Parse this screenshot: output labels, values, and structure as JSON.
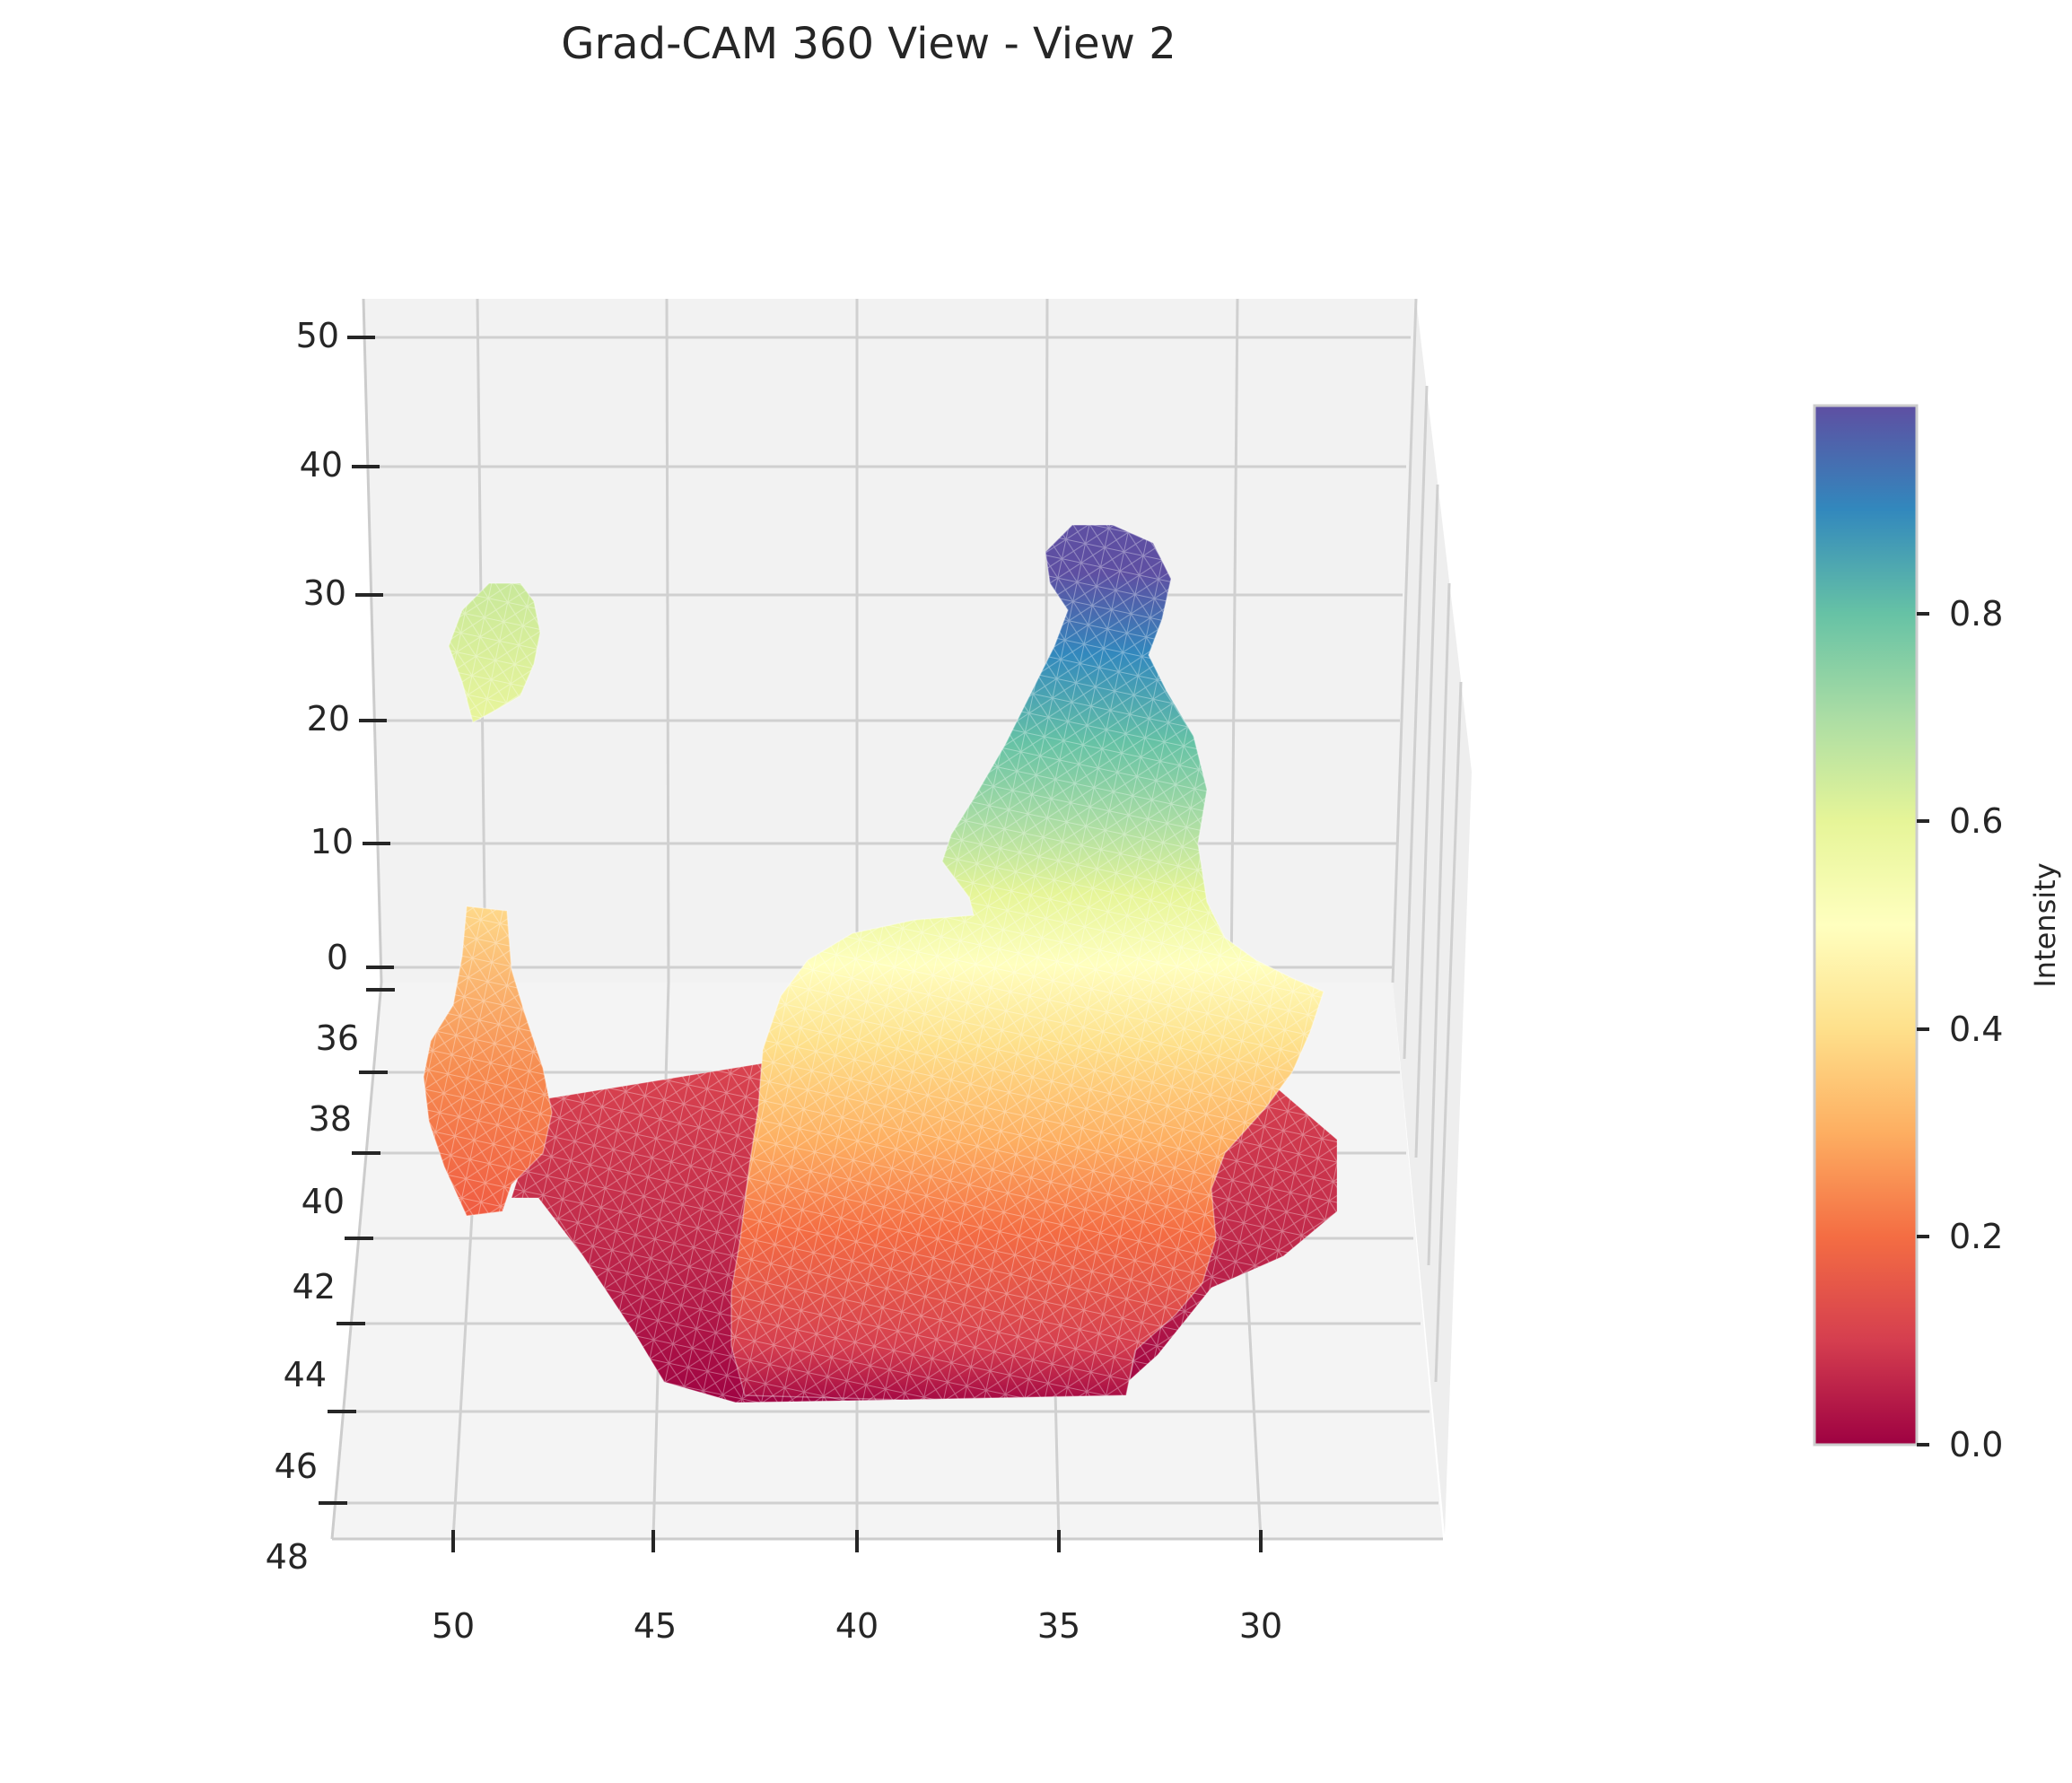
{
  "chart_data": {
    "type": "surface3d",
    "title": "Grad-CAM 360 View - View 2",
    "xlabel": "",
    "ylabel": "",
    "zlabel": "",
    "x_ticks": [
      "50",
      "45",
      "40",
      "35",
      "30"
    ],
    "y_ticks": [
      "36",
      "38",
      "40",
      "42",
      "44",
      "46",
      "48"
    ],
    "z_ticks": [
      "50",
      "40",
      "30",
      "20",
      "10",
      "0"
    ],
    "grid": true,
    "colormap": "Spectral",
    "colorbar": {
      "label": "Intensity",
      "ticks": [
        "0.0",
        "0.2",
        "0.4",
        "0.6",
        "0.8"
      ],
      "range": [
        0.0,
        0.98
      ],
      "colors": [
        "#9e0142",
        "#d53e4f",
        "#f46d43",
        "#fdae61",
        "#fee08b",
        "#ffffbf",
        "#e6f598",
        "#abdda4",
        "#66c2a5",
        "#3288bd",
        "#5e4fa2"
      ]
    },
    "regions": [
      {
        "name": "main-blob",
        "x_range": [
          28,
          43
        ],
        "z_range": [
          -15,
          37
        ],
        "intensity_range": [
          0.0,
          0.98
        ],
        "peak_x": 34,
        "peak_z": 35
      },
      {
        "name": "upper-left-fragment",
        "x_range": [
          47,
          49
        ],
        "z_range": [
          20,
          30
        ],
        "intensity": 0.65
      },
      {
        "name": "lower-left-spike",
        "x_range": [
          48,
          50
        ],
        "z_range": [
          -8,
          5
        ],
        "intensity_range": [
          0.2,
          0.42
        ]
      }
    ]
  }
}
